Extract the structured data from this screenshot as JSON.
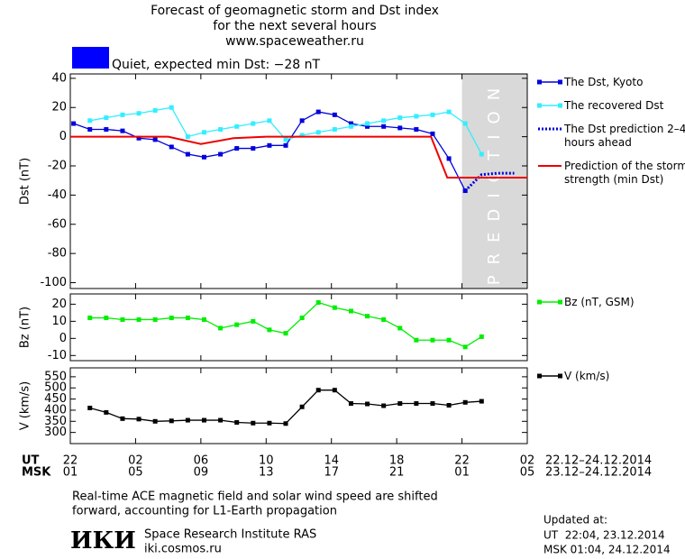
{
  "header": {
    "title_lines": [
      "Forecast of geomagnetic storm and Dst index",
      "for the next several hours",
      "www.spaceweather.ru"
    ],
    "status": "Quiet, expected min Dst: −28 nT",
    "status_color": "#0000ff"
  },
  "chart_data": [
    {
      "type": "line",
      "y_label": "Dst (nT)",
      "xlim": [
        22,
        50
      ],
      "ylim": [
        -104,
        43
      ],
      "yticks": [
        40,
        20,
        0,
        -20,
        -40,
        -60,
        -80,
        -100
      ],
      "shade": {
        "from": 46,
        "to": 50,
        "label": "PREDICTION",
        "color": "#d9d9d9"
      },
      "series": [
        {
          "name": "The Dst, Kyoto",
          "color": "#0000dd",
          "marker": "square",
          "dash": "none",
          "x": [
            22.2,
            23.2,
            24.2,
            25.2,
            26.2,
            27.2,
            28.2,
            29.2,
            30.2,
            31.2,
            32.2,
            33.2,
            34.2,
            35.2,
            36.2,
            37.2,
            38.2,
            39.2,
            40.2,
            41.2,
            42.2,
            43.2,
            44.2,
            45.2,
            46.2
          ],
          "values": [
            9,
            5,
            5,
            4,
            -1,
            -2,
            -7,
            -12,
            -14,
            -12,
            -8,
            -8,
            -6,
            -6,
            11,
            17,
            15,
            9,
            7,
            7,
            6,
            5,
            2,
            -15,
            -37
          ]
        },
        {
          "name": "The recovered Dst",
          "color": "#33eeff",
          "marker": "square",
          "dash": "none",
          "x": [
            23.2,
            24.2,
            25.2,
            26.2,
            27.2,
            28.2,
            29.2,
            30.2,
            31.2,
            32.2,
            33.2,
            34.2,
            35.2,
            36.2,
            37.2,
            38.2,
            39.2,
            40.2,
            41.2,
            42.2,
            43.2,
            44.2,
            45.2,
            46.2,
            47.2
          ],
          "values": [
            11,
            13,
            15,
            16,
            18,
            20,
            0,
            3,
            5,
            7,
            9,
            11,
            -2,
            1,
            3,
            5,
            7,
            9,
            11,
            13,
            14,
            15,
            17,
            9,
            -12
          ]
        },
        {
          "name": "The Dst prediction 2–4 hours ahead",
          "color": "#0000dd",
          "marker": "none",
          "dash": "dotted",
          "x": [
            46.2,
            47.2,
            48.2,
            49.2
          ],
          "values": [
            -37,
            -26,
            -25,
            -25
          ]
        },
        {
          "name": "Prediction of the storm strength (min Dst)",
          "color": "#ee0000",
          "marker": "none",
          "dash": "none",
          "x": [
            22,
            28,
            30,
            32,
            34,
            44.1,
            45.1,
            50
          ],
          "values": [
            0,
            0,
            -5,
            -1,
            0,
            0,
            -28,
            -28
          ]
        }
      ]
    },
    {
      "type": "line",
      "y_label": "Bz (nT)",
      "xlim": [
        22,
        50
      ],
      "ylim": [
        -13,
        26
      ],
      "yticks": [
        20,
        10,
        0,
        -10
      ],
      "series": [
        {
          "name": "Bz (nT, GSM)",
          "color": "#00ee00",
          "marker": "square",
          "dash": "none",
          "x": [
            23.2,
            24.2,
            25.2,
            26.2,
            27.2,
            28.2,
            29.2,
            30.2,
            31.2,
            32.2,
            33.2,
            34.2,
            35.2,
            36.2,
            37.2,
            38.2,
            39.2,
            40.2,
            41.2,
            42.2,
            43.2,
            44.2,
            45.2,
            46.2,
            47.2
          ],
          "values": [
            12,
            12,
            11,
            11,
            11,
            12,
            12,
            11,
            6,
            8,
            10,
            5,
            3,
            12,
            21,
            18,
            16,
            13,
            11,
            6,
            -1,
            -1,
            -1,
            -5,
            1
          ]
        }
      ]
    },
    {
      "type": "line",
      "y_label": "V (km/s)",
      "xlim": [
        22,
        50
      ],
      "ylim": [
        250,
        590
      ],
      "yticks": [
        550,
        500,
        450,
        400,
        350,
        300
      ],
      "series": [
        {
          "name": "V (km/s)",
          "color": "#000000",
          "marker": "square",
          "dash": "none",
          "x": [
            23.2,
            24.2,
            25.2,
            26.2,
            27.2,
            28.2,
            29.2,
            30.2,
            31.2,
            32.2,
            33.2,
            34.2,
            35.2,
            36.2,
            37.2,
            38.2,
            39.2,
            40.2,
            41.2,
            42.2,
            43.2,
            44.2,
            45.2,
            46.2,
            47.2
          ],
          "values": [
            410,
            390,
            362,
            360,
            350,
            352,
            355,
            355,
            355,
            345,
            342,
            342,
            340,
            415,
            490,
            490,
            430,
            428,
            420,
            430,
            430,
            430,
            422,
            435,
            440
          ]
        }
      ],
      "xticks": [
        {
          "value": 22,
          "label": "22"
        },
        {
          "value": 26,
          "label": "02"
        },
        {
          "value": 30,
          "label": "06"
        },
        {
          "value": 34,
          "label": "10"
        },
        {
          "value": 38,
          "label": "14"
        },
        {
          "value": 42,
          "label": "18"
        },
        {
          "value": 46,
          "label": "22"
        },
        {
          "value": 50,
          "label": "02"
        }
      ],
      "msk_ticks": [
        {
          "value": 22,
          "label": "01"
        },
        {
          "value": 26,
          "label": "05"
        },
        {
          "value": 30,
          "label": "09"
        },
        {
          "value": 34,
          "label": "13"
        },
        {
          "value": 38,
          "label": "17"
        },
        {
          "value": 42,
          "label": "21"
        },
        {
          "value": 46,
          "label": "01"
        },
        {
          "value": 50,
          "label": "05"
        }
      ],
      "ut_label": "UT",
      "msk_label": "MSK",
      "ut_range": "22.12–24.12.2014",
      "msk_range": "23.12–24.12.2014"
    }
  ],
  "footer": {
    "note_lines": [
      "Real-time ACE magnetic field and solar wind speed are shifted",
      "forward, accounting for L1-Earth propagation"
    ],
    "logo": "ИКИ",
    "institute": "Space Research Institute RAS",
    "url": "iki.cosmos.ru",
    "updated_lines": [
      "Updated at:",
      "UT  22:04, 23.12.2014",
      "MSK 01:04, 24.12.2014"
    ]
  }
}
